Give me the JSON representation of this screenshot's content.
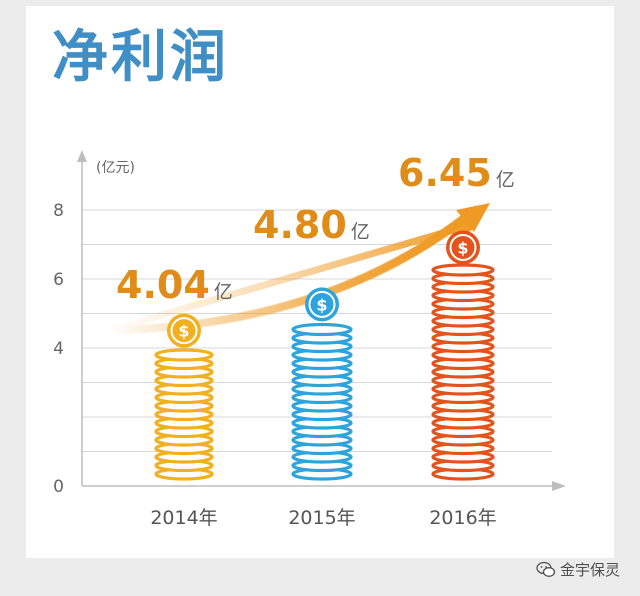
{
  "title": "净利润",
  "watermark": "金宇保灵",
  "colors": {
    "title": "#3f8fc6",
    "series": [
      "#f2b01e",
      "#2ea4dc",
      "#e3541c"
    ],
    "value_text": "#e08c19",
    "arrow": "#ef9a24"
  },
  "icons": [
    "dollar-coin-icon",
    "up-trend-arrow-icon",
    "wechat-icon"
  ],
  "chart_data": {
    "type": "bar",
    "title": "净利润",
    "ylabel": "(亿元)",
    "ylim": [
      0,
      8
    ],
    "yticks": [
      0,
      4,
      6,
      8
    ],
    "grid": true,
    "categories": [
      "2014年",
      "2015年",
      "2016年"
    ],
    "values": [
      4.04,
      4.8,
      6.45
    ],
    "value_labels": [
      "4.04",
      "4.80",
      "6.45"
    ],
    "unit_label": "亿"
  }
}
